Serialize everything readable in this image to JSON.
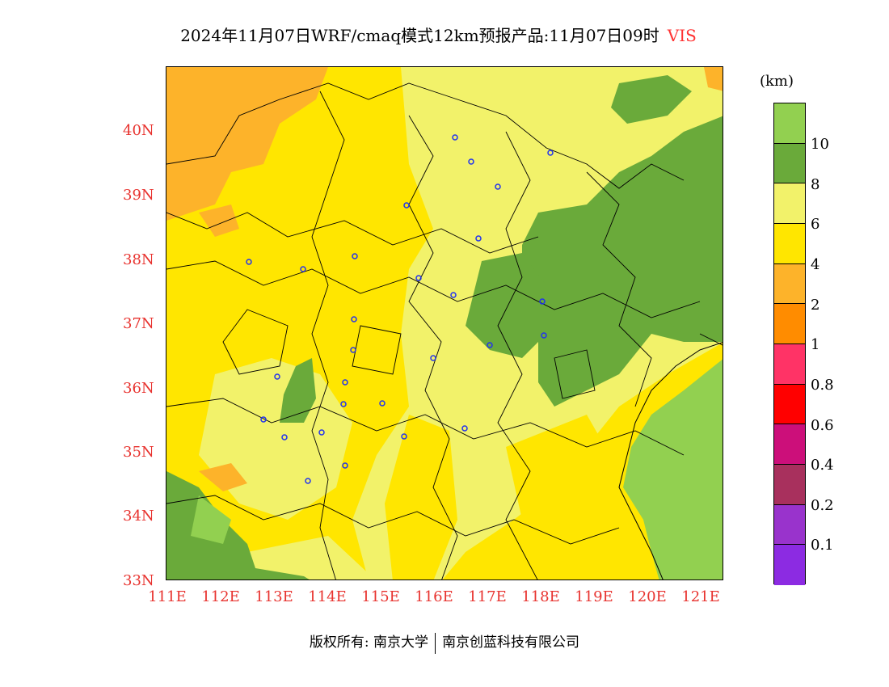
{
  "title": "2024年11月07日WRF/cmaq模式12km预报产品:11月07日09时",
  "variable": "VIS",
  "unit": "(km)",
  "lat_labels": [
    "40N",
    "39N",
    "38N",
    "37N",
    "36N",
    "35N",
    "34N",
    "33N"
  ],
  "lon_labels": [
    "111E",
    "112E",
    "113E",
    "114E",
    "115E",
    "116E",
    "117E",
    "118E",
    "119E",
    "120E",
    "121E"
  ],
  "colorbar": {
    "colors": [
      "#92d050",
      "#6aaa3a",
      "#f2f26a",
      "#ffe600",
      "#fdb32a",
      "#ff8c00",
      "#ff3366",
      "#ff0000",
      "#cc0f7a",
      "#a8305d",
      "#9933cc",
      "#8c2be2"
    ],
    "labels": [
      "10",
      "8",
      "6",
      "4",
      "2",
      "1",
      "0.8",
      "0.6",
      "0.4",
      "0.2",
      "0.1"
    ]
  },
  "footer": {
    "copyright": "版权所有: 南京大学",
    "company": "南京创蓝科技有限公司"
  }
}
